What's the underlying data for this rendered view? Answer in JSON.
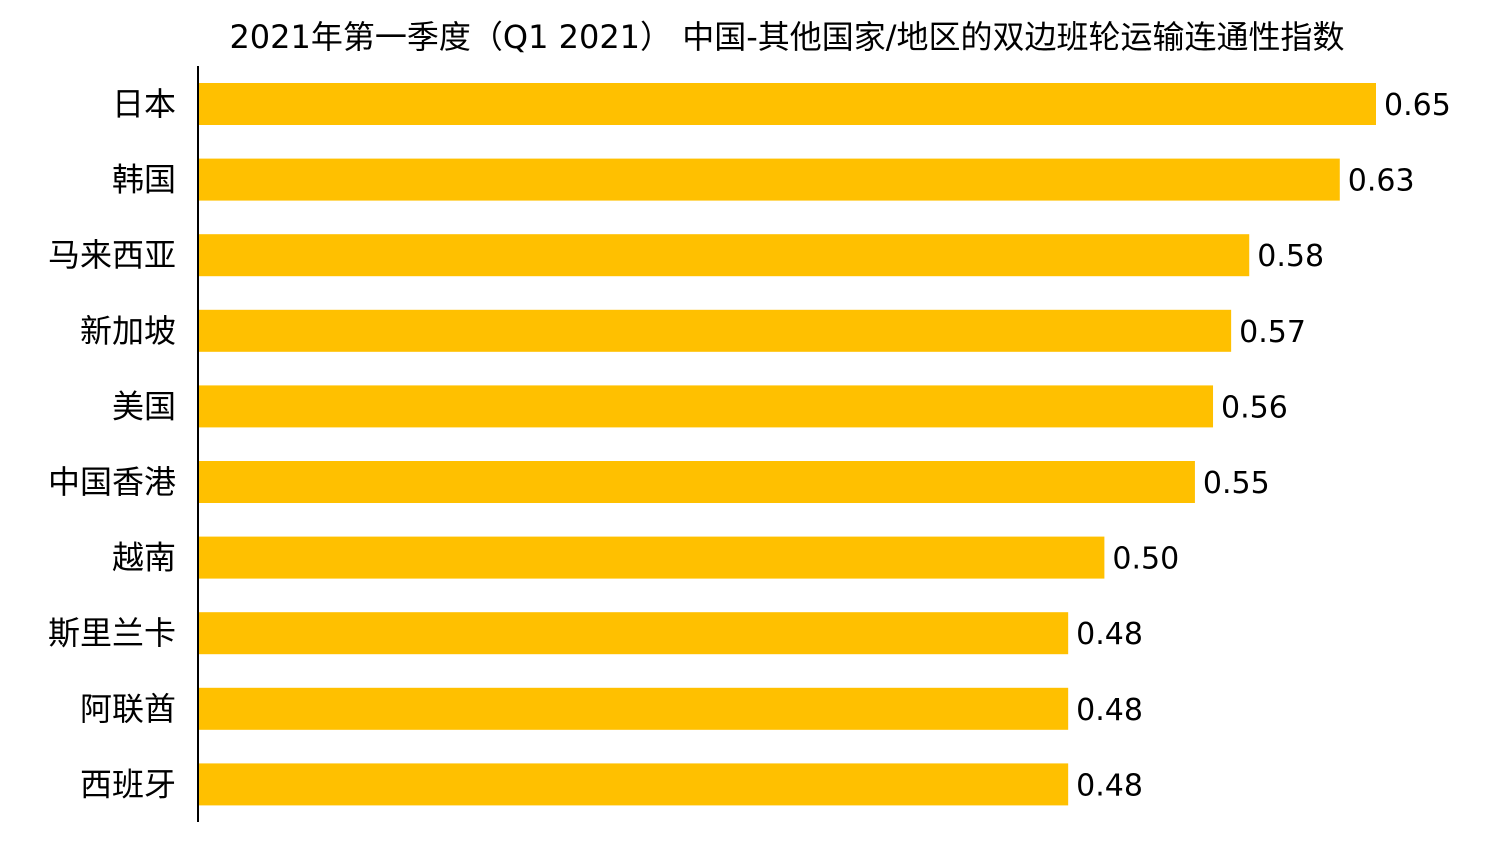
{
  "chart_data": {
    "type": "bar",
    "orientation": "horizontal",
    "title": "2021年第一季度（Q1 2021） 中国-其他国家/地区的双边班轮运输连通性指数",
    "categories": [
      "日本",
      "韩国",
      "马来西亚",
      "新加坡",
      "美国",
      "中国香港",
      "越南",
      "斯里兰卡",
      "阿联酋",
      "西班牙"
    ],
    "values": [
      0.65,
      0.63,
      0.58,
      0.57,
      0.56,
      0.55,
      0.5,
      0.48,
      0.48,
      0.48
    ],
    "value_labels": [
      "0.65",
      "0.63",
      "0.58",
      "0.57",
      "0.56",
      "0.55",
      "0.50",
      "0.48",
      "0.48",
      "0.48"
    ],
    "xlabel": "",
    "ylabel": "",
    "xlim": [
      0,
      0.65
    ],
    "grid": false,
    "legend": "none",
    "bar_color": "#FFC000",
    "axis_color": "#000000"
  }
}
